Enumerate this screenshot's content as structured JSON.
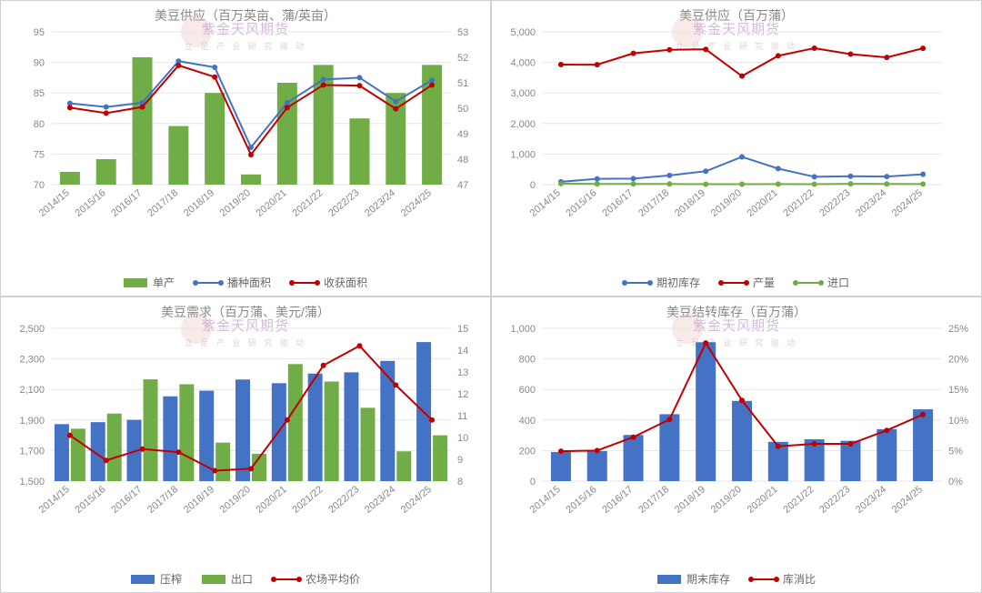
{
  "global": {
    "categories": [
      "2014/15",
      "2015/16",
      "2016/17",
      "2017/18",
      "2018/19",
      "2019/20",
      "2020/21",
      "2021/22",
      "2022/23",
      "2023/24",
      "2024/25"
    ],
    "watermark_main": "紫金天风期货",
    "watermark_sub": "立 足 产 业  研 究 驱 动",
    "colors": {
      "green": "#70ad47",
      "blue": "#4472c4",
      "red": "#c00000",
      "grid": "#e6e6e6",
      "axis_text": "#888888",
      "bg": "#ffffff"
    },
    "tick_fontsize": 11,
    "title_fontsize": 14
  },
  "chart_tl": {
    "title": "美豆供应（百万英亩、蒲/英亩）",
    "type": "bar+line+line",
    "left_axis": {
      "min": 70,
      "max": 95,
      "step": 5
    },
    "right_axis": {
      "min": 47,
      "max": 53,
      "step": 1
    },
    "bars": {
      "label": "单产",
      "color": "#70ad47",
      "axis": "right",
      "values": [
        47.5,
        48.0,
        52.0,
        49.3,
        50.6,
        47.4,
        51.0,
        51.7,
        49.6,
        50.6,
        51.7
      ]
    },
    "line1": {
      "label": "播种面积",
      "color": "#4472c4",
      "axis": "left",
      "values": [
        83.3,
        82.7,
        83.4,
        90.2,
        89.2,
        76.1,
        83.4,
        87.2,
        87.5,
        83.6,
        87.1
      ]
    },
    "line2": {
      "label": "收获面积",
      "color": "#c00000",
      "axis": "left",
      "values": [
        82.6,
        81.7,
        82.7,
        89.5,
        87.6,
        74.9,
        82.6,
        86.3,
        86.2,
        82.4,
        86.3
      ]
    }
  },
  "chart_tr": {
    "title": "美豆供应（百万蒲）",
    "type": "line+line+line",
    "left_axis": {
      "min": 0,
      "max": 5000,
      "step": 1000,
      "tick_format": "comma"
    },
    "line1": {
      "label": "期初库存",
      "color": "#4472c4",
      "values": [
        92,
        191,
        197,
        302,
        438,
        909,
        525,
        257,
        274,
        264,
        340
      ]
    },
    "line2": {
      "label": "产量",
      "color": "#c00000",
      "values": [
        3927,
        3926,
        4296,
        4412,
        4428,
        3552,
        4216,
        4465,
        4270,
        4162,
        4461
      ]
    },
    "line3": {
      "label": "进口",
      "color": "#70ad47",
      "values": [
        33,
        24,
        22,
        22,
        14,
        15,
        20,
        16,
        25,
        21,
        20
      ]
    }
  },
  "chart_bl": {
    "title": "美豆需求（百万蒲、美元/蒲）",
    "type": "bar+bar+line",
    "left_axis": {
      "min": 1500,
      "max": 2500,
      "step": 200,
      "tick_format": "comma"
    },
    "right_axis": {
      "min": 8,
      "max": 15,
      "step": 1
    },
    "bars1": {
      "label": "压榨",
      "color": "#4472c4",
      "axis": "left",
      "values": [
        1873,
        1886,
        1901,
        2055,
        2092,
        2165,
        2141,
        2204,
        2212,
        2287,
        2410
      ]
    },
    "bars2": {
      "label": "出口",
      "color": "#70ad47",
      "axis": "left",
      "values": [
        1843,
        1942,
        2166,
        2134,
        1752,
        1679,
        2266,
        2152,
        1980,
        1695,
        1800
      ]
    },
    "line": {
      "label": "农场平均价",
      "color": "#c00000",
      "axis": "right",
      "values": [
        10.1,
        8.95,
        9.47,
        9.33,
        8.48,
        8.57,
        10.8,
        13.3,
        14.2,
        12.4,
        10.8
      ]
    }
  },
  "chart_br": {
    "title": "美豆结转库存（百万蒲）",
    "type": "bar+line",
    "left_axis": {
      "min": 0,
      "max": 1000,
      "step": 200,
      "tick_format": "comma"
    },
    "right_axis": {
      "min": 0,
      "max": 0.25,
      "step": 0.05,
      "tick_format": "percent"
    },
    "bars": {
      "label": "期末库存",
      "color": "#4472c4",
      "axis": "left",
      "values": [
        191,
        197,
        302,
        438,
        909,
        525,
        257,
        274,
        264,
        340,
        470
      ]
    },
    "line": {
      "label": "库消比",
      "color": "#c00000",
      "axis": "right",
      "values": [
        0.049,
        0.05,
        0.072,
        0.101,
        0.226,
        0.132,
        0.057,
        0.061,
        0.061,
        0.083,
        0.109
      ]
    }
  }
}
